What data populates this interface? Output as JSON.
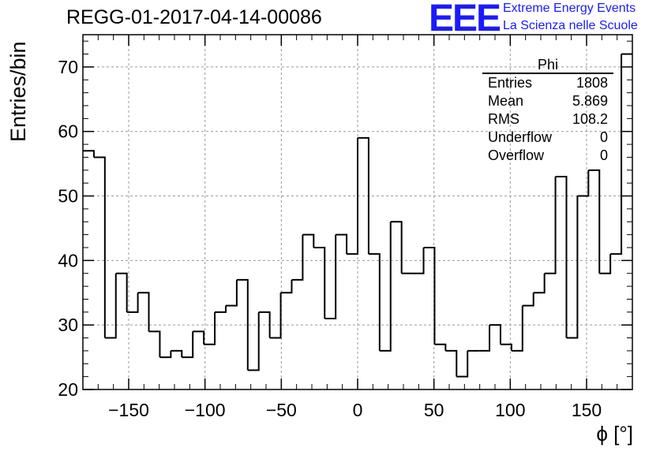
{
  "chart_data": {
    "type": "bar",
    "title": "REGG-01-2017-04-14-00086",
    "xlabel": "ϕ [°]",
    "ylabel": "Entries/bin",
    "xlim": [
      -180,
      180
    ],
    "ylim": [
      20,
      75
    ],
    "x_ticks": [
      -150,
      -100,
      -50,
      0,
      50,
      100,
      150
    ],
    "y_ticks": [
      20,
      30,
      40,
      50,
      60,
      70
    ],
    "grid": true,
    "bin_width": 7.2,
    "values": [
      57,
      56,
      28,
      38,
      32,
      35,
      29,
      25,
      26,
      25,
      29,
      27,
      32,
      33,
      37,
      23,
      32,
      28,
      35,
      37,
      44,
      42,
      31,
      44,
      41,
      59,
      41,
      26,
      46,
      38,
      38,
      42,
      27,
      26,
      22,
      26,
      26,
      30,
      27,
      26,
      33,
      35,
      38,
      53,
      28,
      50,
      54,
      38,
      41,
      72
    ],
    "stats": {
      "name": "Phi",
      "rows": [
        {
          "label": "Entries",
          "value": "1808"
        },
        {
          "label": "Mean",
          "value": "5.869"
        },
        {
          "label": "RMS",
          "value": "108.2"
        },
        {
          "label": "Underflow",
          "value": "0"
        },
        {
          "label": "Overflow",
          "value": "0"
        }
      ]
    }
  },
  "logo": {
    "mark": "EEE",
    "line1": "Extreme Energy Events",
    "line2": "La Scienza nelle Scuole"
  },
  "colors": {
    "logo": "#1a1aff",
    "line": "#000000",
    "grid": "#999999"
  }
}
